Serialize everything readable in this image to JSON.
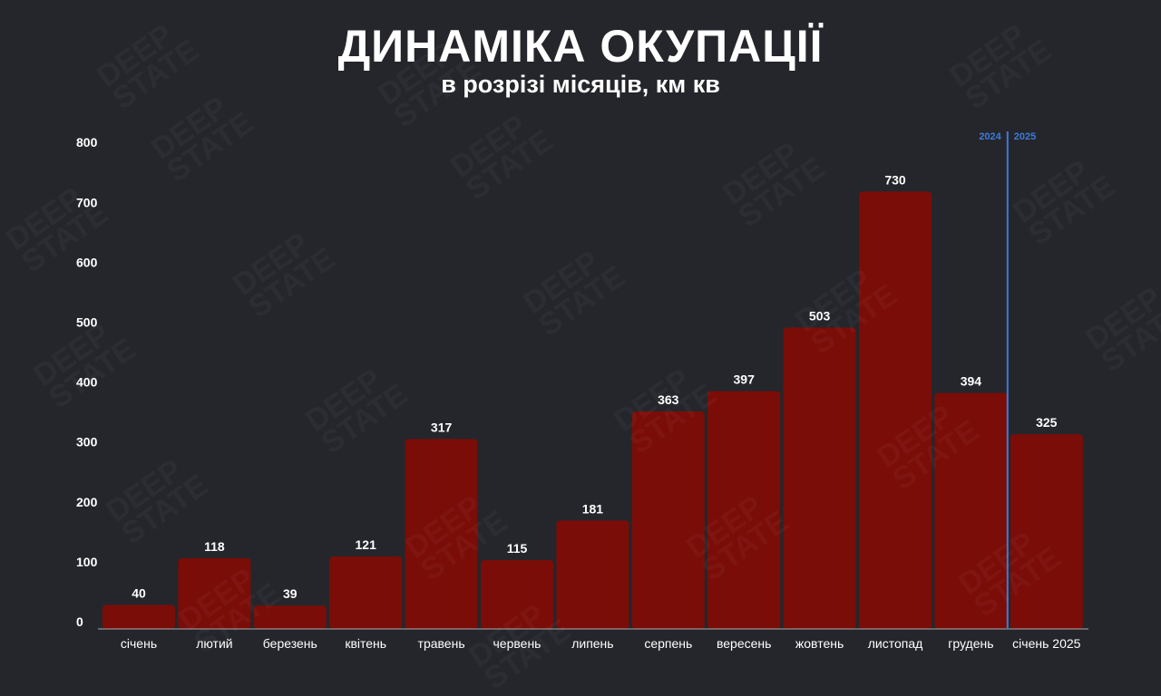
{
  "chart_data": {
    "type": "bar",
    "title": "ДИНАМІКА ОКУПАЦІЇ",
    "subtitle": "в розрізі місяців, км кв",
    "categories": [
      "січень",
      "лютий",
      "березень",
      "квітень",
      "травень",
      "червень",
      "липень",
      "серпень",
      "вересень",
      "жовтень",
      "листопад",
      "грудень",
      "січень 2025"
    ],
    "values": [
      40,
      118,
      39,
      121,
      317,
      115,
      181,
      363,
      397,
      503,
      730,
      394,
      325
    ],
    "ylim": [
      0,
      800
    ],
    "yticks": [
      0,
      100,
      200,
      300,
      400,
      500,
      600,
      700,
      800
    ],
    "grid": false,
    "bar_color": "#7a0d08",
    "divider": {
      "between": [
        "грудень",
        "січень 2025"
      ],
      "left_label": "2024",
      "right_label": "2025",
      "color": "#3d7bd9"
    }
  },
  "watermark": "DEEP STATE"
}
